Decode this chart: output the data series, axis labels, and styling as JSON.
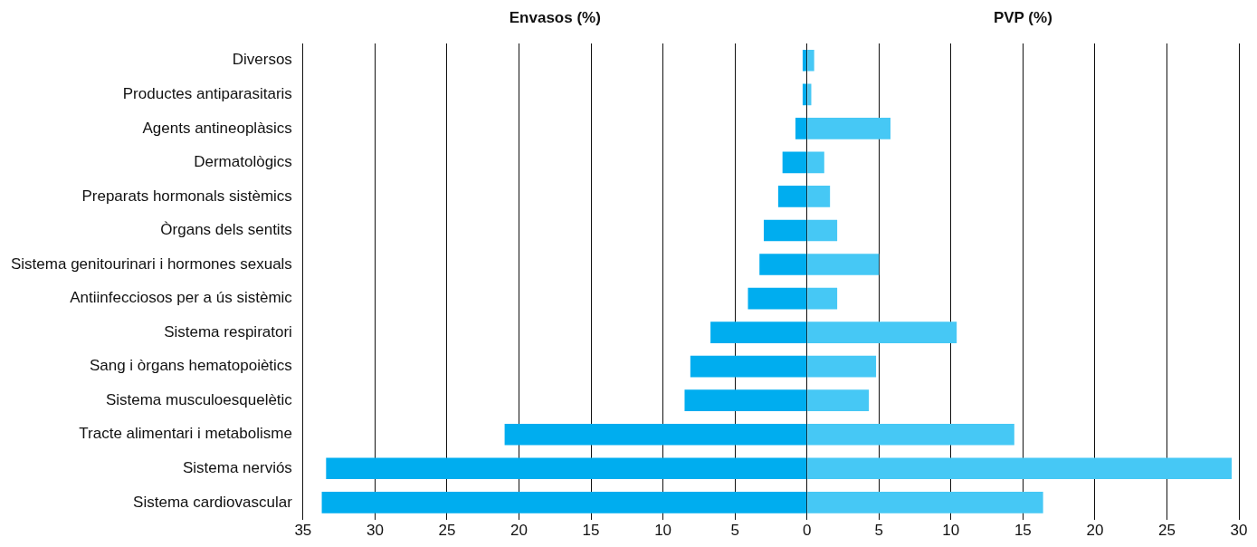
{
  "chart_data": {
    "type": "bar",
    "orientation": "horizontal",
    "stacked": true,
    "grid": "x",
    "legend": false,
    "categories": [
      "Diversos",
      "Productes antiparasitaris",
      "Agents antineoplàsics",
      "Dermatològics",
      "Preparats hormonals sistèmics",
      "Òrgans dels sentits",
      "Sistema genitourinari i hormones sexuals",
      "Antiinfecciosos per a ús sistèmic",
      "Sistema respiratori",
      "Sang i òrgans hematopoiètics",
      "Sistema musculoesquelètic",
      "Tracte alimentari i metabolisme",
      "Sistema nerviós",
      "Sistema cardiovascular"
    ],
    "series": [
      {
        "color": "#00adef",
        "values": [
          -0.3,
          -0.3,
          -0.8,
          -1.7,
          -2.0,
          -3.0,
          -3.3,
          -4.1,
          -6.7,
          -8.1,
          -8.5,
          -21.0,
          -33.4,
          -33.7
        ]
      },
      {
        "color": "#46c8f5",
        "values": [
          0.5,
          0.3,
          5.8,
          1.2,
          1.6,
          2.1,
          5.0,
          2.1,
          10.4,
          4.8,
          4.3,
          14.4,
          29.5,
          16.4
        ]
      }
    ],
    "annotations": [
      "Envasos (%)",
      "PVP (%)"
    ],
    "xlim": [
      -35,
      30
    ],
    "xticks": [
      {
        "value": -35,
        "label": "35"
      },
      {
        "value": -30,
        "label": "30"
      },
      {
        "value": -25,
        "label": "25"
      },
      {
        "value": -20,
        "label": "20"
      },
      {
        "value": -15,
        "label": "15"
      },
      {
        "value": -10,
        "label": "10"
      },
      {
        "value": -5,
        "label": "5"
      },
      0,
      5,
      10,
      15,
      20,
      25,
      30
    ]
  }
}
